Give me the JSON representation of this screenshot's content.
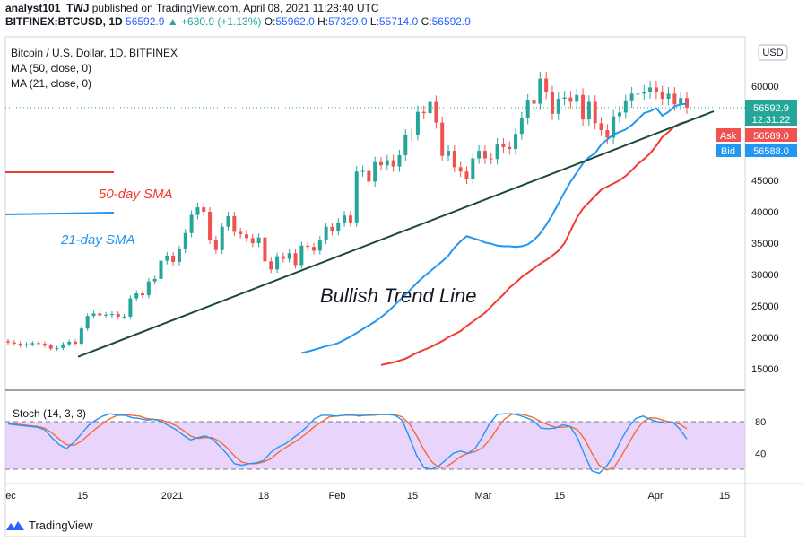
{
  "header": {
    "publisher": "analyst101_TWJ",
    "published_text": " published on TradingView.com, April 08, 2021 11:28:40 UTC",
    "symbol": "BITFINEX:BTCUSD, 1D",
    "last": "56592.9",
    "change": "▲ +630.9 (+1.13%)",
    "o_label": "O:",
    "o": "55962.0",
    "h_label": "H:",
    "h": "57329.0",
    "l_label": "L:",
    "l": "55714.0",
    "c_label": "C:",
    "c": "56592.9"
  },
  "legend": {
    "title": "Bitcoin / U.S. Dollar, 1D, BITFINEX",
    "ma50": "MA (50, close, 0)",
    "ma21": "MA (21, close, 0)"
  },
  "currency": "USD",
  "price_tags": {
    "last": "56592.9",
    "countdown": "12:31:22",
    "ask_label": "Ask",
    "ask": "56589.0",
    "bid_label": "Bid",
    "bid": "56588.0"
  },
  "annotations": {
    "sma50": "50-day SMA",
    "sma21": "21-day SMA",
    "trend": "Bullish Trend Line"
  },
  "stoch": {
    "label": "Stoch (14, 3, 3)",
    "levels": [
      "80",
      "40"
    ],
    "k_values": [
      77,
      76,
      75,
      74,
      73,
      70,
      60,
      51,
      46,
      54,
      64,
      75,
      82,
      87,
      90,
      88,
      88,
      85,
      84,
      82,
      83,
      80,
      75,
      70,
      63,
      57,
      60,
      62,
      58,
      49,
      39,
      27,
      25,
      27,
      28,
      31,
      41,
      48,
      52,
      59,
      66,
      74,
      84,
      88,
      88,
      87,
      88,
      89,
      87,
      88,
      89,
      89,
      89,
      88,
      82,
      60,
      37,
      22,
      20,
      24,
      32,
      40,
      43,
      40,
      46,
      61,
      78,
      89,
      90,
      90,
      88,
      85,
      81,
      72,
      71,
      72,
      76,
      74,
      60,
      38,
      18,
      15,
      24,
      38,
      57,
      73,
      84,
      87,
      83,
      80,
      78,
      80,
      71,
      58
    ],
    "d_values": [
      78,
      77,
      76,
      75,
      74,
      72,
      66,
      58,
      51,
      50,
      55,
      63,
      71,
      78,
      84,
      88,
      89,
      88,
      87,
      84,
      83,
      82,
      79,
      75,
      69,
      62,
      59,
      60,
      60,
      55,
      47,
      37,
      29,
      27,
      27,
      29,
      33,
      41,
      47,
      53,
      59,
      66,
      74,
      80,
      86,
      87,
      88,
      88,
      88,
      88,
      88,
      89,
      89,
      89,
      86,
      77,
      62,
      44,
      30,
      22,
      23,
      29,
      36,
      40,
      42,
      47,
      57,
      71,
      83,
      89,
      90,
      88,
      85,
      80,
      76,
      73,
      73,
      74,
      70,
      58,
      40,
      25,
      19,
      22,
      36,
      52,
      68,
      80,
      85,
      84,
      81,
      79,
      77,
      71
    ]
  },
  "tv_brand": "TradingView",
  "colors": {
    "up": "#26a69a",
    "down": "#ef5350",
    "ma21": "#2196f3",
    "ma50": "#f23b2f",
    "trend": "#1a4a3a",
    "stoch_k": "#2196f3",
    "stoch_d": "#f26b3a",
    "stoch_fill": "#e1c6f9"
  },
  "chart_data": [
    {
      "type": "candlestick",
      "title": "Bitcoin / U.S. Dollar, 1D, BITFINEX",
      "ylabel": "USD",
      "ylim": [
        10000,
        63000
      ],
      "x_ticks": [
        "ec",
        "15",
        "2021",
        "18",
        "Feb",
        "15",
        "Mar",
        "15",
        "Apr",
        "15"
      ],
      "y_ticks": [
        15000,
        20000,
        25000,
        30000,
        35000,
        40000,
        45000,
        50000,
        55000,
        60000
      ],
      "series": [
        {
          "name": "BTCUSD close",
          "values": [
            19200,
            19000,
            18700,
            18900,
            19100,
            19000,
            18700,
            18200,
            18300,
            18900,
            19300,
            19000,
            21400,
            23400,
            23800,
            23500,
            23600,
            23700,
            23300,
            23300,
            26200,
            27000,
            26700,
            28900,
            29300,
            32200,
            33000,
            32000,
            34000,
            36600,
            39500,
            40700,
            40000,
            35500,
            33900,
            37600,
            39300,
            36800,
            36400,
            35800,
            35000,
            35900,
            32100,
            30800,
            32900,
            32500,
            33400,
            31500,
            34600,
            34400,
            33800,
            35500,
            37600,
            36900,
            38300,
            39400,
            38300,
            46400,
            46500,
            44800,
            47900,
            47400,
            48200,
            47200,
            49000,
            52200,
            52300,
            55900,
            55700,
            57500,
            54200,
            48900,
            49700,
            47100,
            46400,
            45200,
            48500,
            49700,
            48500,
            48400,
            50800,
            50300,
            50000,
            52400,
            54900,
            57700,
            57200,
            61200,
            59000,
            55600,
            58000,
            58200,
            57500,
            58600,
            54700,
            57500,
            54100,
            53000,
            51800,
            55200,
            55800,
            57600,
            58800,
            58800,
            59100,
            59800,
            59000,
            58000,
            58800,
            57100,
            58100,
            56600
          ],
          "open_offset_note": ""
        }
      ],
      "ma21": [
        17500,
        17750,
        18000,
        18300,
        18600,
        18800,
        19100,
        19600,
        20100,
        20700,
        21300,
        21900,
        22500,
        23200,
        24000,
        24900,
        25900,
        26800,
        27800,
        28800,
        29700,
        30500,
        31300,
        32100,
        33000,
        34300,
        35300,
        36100,
        35800,
        35500,
        35100,
        34900,
        34600,
        34500,
        34500,
        34400,
        34500,
        34800,
        35500,
        36500,
        37900,
        39500,
        41300,
        43100,
        44800,
        46200,
        47700,
        48700,
        49300,
        50700,
        51500,
        52300,
        52700,
        53100,
        53800,
        54700,
        55700,
        56000,
        56500,
        55300,
        55900,
        56800,
        57100,
        57200
      ],
      "ma50": [
        15600,
        15800,
        16000,
        16300,
        16600,
        17100,
        17600,
        18000,
        18400,
        18900,
        19400,
        20000,
        20500,
        21000,
        21800,
        22500,
        23200,
        23900,
        24900,
        25900,
        26800,
        27900,
        28700,
        29600,
        30300,
        31000,
        31700,
        32300,
        33000,
        33800,
        35000,
        37000,
        39000,
        40500,
        41500,
        42500,
        43500,
        44000,
        44500,
        45000,
        45700,
        46600,
        47600,
        48400,
        49300,
        50500,
        51900,
        52700,
        53600,
        54100,
        54300
      ],
      "trend_line": {
        "from": [
          "Dec 13",
          16900
        ],
        "to": [
          "Apr 12",
          56000
        ]
      },
      "annotations": [
        "50-day SMA",
        "21-day SMA",
        "Bullish Trend Line"
      ]
    },
    {
      "type": "line",
      "title": "Stoch (14, 3, 3)",
      "ylim": [
        0,
        100
      ],
      "bands": [
        20,
        80
      ],
      "y_ticks": [
        40,
        80
      ]
    }
  ]
}
